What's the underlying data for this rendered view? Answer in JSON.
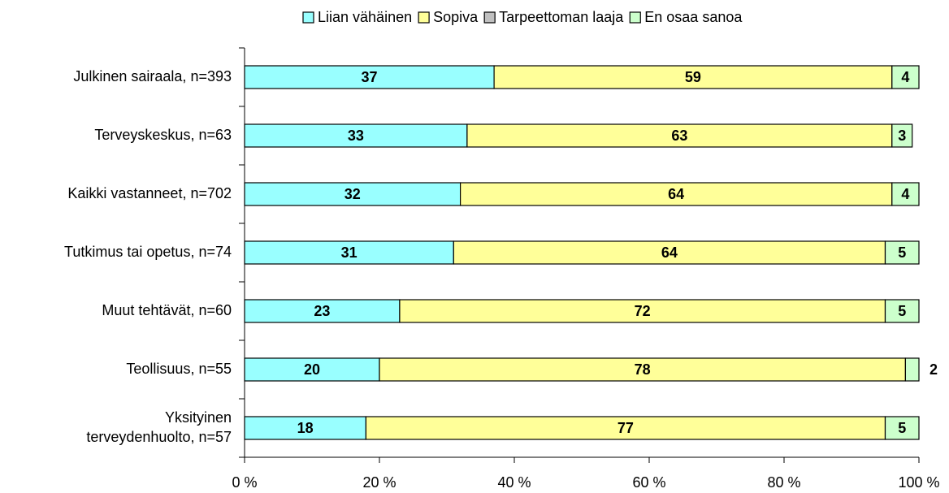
{
  "chart_data": {
    "type": "bar",
    "orientation": "horizontal",
    "stacked": true,
    "categories": [
      "Julkinen sairaala, n=393",
      "Terveyskeskus, n=63",
      "Kaikki vastanneet, n=702",
      "Tutkimus tai opetus, n=74",
      "Muut tehtävät, n=60",
      "Teollisuus, n=55",
      "Yksityinen\nterveydenhuolto, n=57"
    ],
    "series": [
      {
        "name": "Liian vähäinen",
        "color": "#99ffff",
        "values": [
          37,
          33,
          32,
          31,
          23,
          20,
          18
        ]
      },
      {
        "name": "Sopiva",
        "color": "#ffff99",
        "values": [
          59,
          63,
          64,
          64,
          72,
          78,
          77
        ]
      },
      {
        "name": "Tarpeettoman laaja",
        "color": "#c0c0c0",
        "values": [
          0,
          0,
          0,
          0,
          0,
          0,
          0
        ]
      },
      {
        "name": "En osaa sanoa",
        "color": "#ccffcc",
        "values": [
          4,
          3,
          4,
          5,
          5,
          2,
          5
        ]
      }
    ],
    "xlim": [
      0,
      100
    ],
    "xticks": [
      {
        "value": 0,
        "label": "0 %"
      },
      {
        "value": 20,
        "label": "20 %"
      },
      {
        "value": 40,
        "label": "40 %"
      },
      {
        "value": 60,
        "label": "60 %"
      },
      {
        "value": 80,
        "label": "80 %"
      },
      {
        "value": 100,
        "label": "100 %"
      }
    ],
    "legend": "top"
  }
}
